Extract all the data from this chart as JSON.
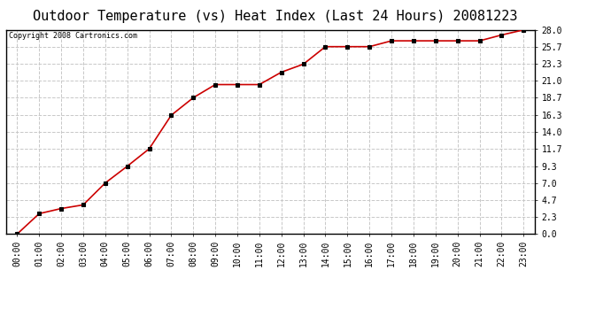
{
  "title": "Outdoor Temperature (vs) Heat Index (Last 24 Hours) 20081223",
  "copyright_text": "Copyright 2008 Cartronics.com",
  "x_labels": [
    "00:00",
    "01:00",
    "02:00",
    "03:00",
    "04:00",
    "05:00",
    "06:00",
    "07:00",
    "08:00",
    "09:00",
    "10:00",
    "11:00",
    "12:00",
    "13:00",
    "14:00",
    "15:00",
    "16:00",
    "17:00",
    "18:00",
    "19:00",
    "20:00",
    "21:00",
    "22:00",
    "23:00"
  ],
  "y_values": [
    0.0,
    2.8,
    3.5,
    4.0,
    7.0,
    9.3,
    11.7,
    16.3,
    18.7,
    20.5,
    20.5,
    20.5,
    22.2,
    23.3,
    25.7,
    25.7,
    25.7,
    26.5,
    26.5,
    26.5,
    26.5,
    26.5,
    27.3,
    28.0
  ],
  "yticks": [
    0.0,
    2.3,
    4.7,
    7.0,
    9.3,
    11.7,
    14.0,
    16.3,
    18.7,
    21.0,
    23.3,
    25.7,
    28.0
  ],
  "ymin": 0.0,
  "ymax": 28.0,
  "line_color": "#cc0000",
  "marker_color": "#000000",
  "bg_color": "#ffffff",
  "grid_color": "#c8c8c8",
  "title_fontsize": 11,
  "copyright_fontsize": 6,
  "tick_fontsize": 7
}
